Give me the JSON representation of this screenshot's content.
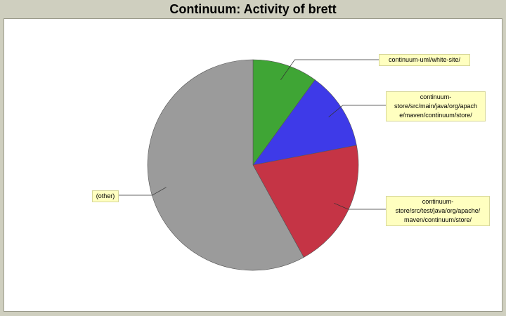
{
  "title": "Continuum: Activity of brett",
  "chart_data": {
    "type": "pie",
    "title": "Continuum: Activity of brett",
    "slices": [
      {
        "label": "continuum-uml/white-site/",
        "value": 10,
        "color": "#3fa535"
      },
      {
        "label": "continuum-store/src/main/java/org/apache/maven/continuum/store/",
        "value": 12,
        "color": "#3e3ae8",
        "lines": [
          "continuum-",
          "store/src/main/java/org/apach",
          "e/maven/continuum/store/"
        ]
      },
      {
        "label": "continuum-store/src/test/java/org/apache/maven/continuum/store/",
        "value": 20,
        "color": "#c53445",
        "lines": [
          "continuum-",
          "store/src/test/java/org/apache/",
          "maven/continuum/store/"
        ]
      },
      {
        "label": "(other)",
        "value": 58,
        "color": "#9b9b9b"
      }
    ],
    "legend": "none"
  }
}
